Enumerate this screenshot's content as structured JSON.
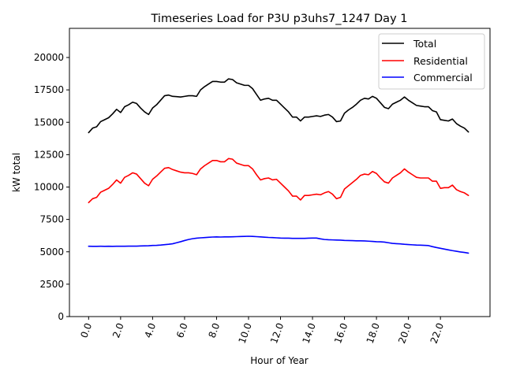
{
  "chart_data": {
    "type": "line",
    "title": "Timeseries Load for P3U p3uhs7_1247  Day 1",
    "xlabel": "Hour of Year",
    "ylabel": "kW total",
    "xlim": [
      -1.2,
      25.1
    ],
    "ylim": [
      0,
      22250
    ],
    "x_ticks": [
      0,
      2,
      4,
      6,
      8,
      10,
      12,
      14,
      16,
      18,
      20,
      22
    ],
    "x_tick_labels": [
      "0.0",
      "2.0",
      "4.0",
      "6.0",
      "8.0",
      "10.0",
      "12.0",
      "14.0",
      "16.0",
      "18.0",
      "20.0",
      "22.0"
    ],
    "y_ticks": [
      0,
      2500,
      5000,
      7500,
      10000,
      12500,
      15000,
      17500,
      20000
    ],
    "y_tick_labels": [
      "0",
      "2500",
      "5000",
      "7500",
      "10000",
      "12500",
      "15000",
      "17500",
      "20000"
    ],
    "legend_position": "top-right",
    "x": [
      0.0,
      0.25,
      0.5,
      0.75,
      1.0,
      1.25,
      1.5,
      1.75,
      2.0,
      2.25,
      2.5,
      2.75,
      3.0,
      3.25,
      3.5,
      3.75,
      4.0,
      4.25,
      4.5,
      4.75,
      5.0,
      5.25,
      5.5,
      5.75,
      6.0,
      6.25,
      6.5,
      6.75,
      7.0,
      7.25,
      7.5,
      7.75,
      8.0,
      8.25,
      8.5,
      8.75,
      9.0,
      9.25,
      9.5,
      9.75,
      10.0,
      10.25,
      10.5,
      10.75,
      11.0,
      11.25,
      11.5,
      11.75,
      12.0,
      12.25,
      12.5,
      12.75,
      13.0,
      13.25,
      13.5,
      13.75,
      14.0,
      14.25,
      14.5,
      14.75,
      15.0,
      15.25,
      15.5,
      15.75,
      16.0,
      16.25,
      16.5,
      16.75,
      17.0,
      17.25,
      17.5,
      17.75,
      18.0,
      18.25,
      18.5,
      18.75,
      19.0,
      19.25,
      19.5,
      19.75,
      20.0,
      20.25,
      20.5,
      20.75,
      21.0,
      21.25,
      21.5,
      21.75,
      22.0,
      22.25,
      22.5,
      22.75,
      23.0,
      23.25,
      23.5,
      23.75
    ],
    "series": [
      {
        "name": "Total",
        "color": "#000000",
        "values": [
          14200,
          14550,
          14650,
          15050,
          15200,
          15350,
          15650,
          16000,
          15750,
          16200,
          16350,
          16550,
          16450,
          16100,
          15800,
          15600,
          16100,
          16350,
          16700,
          17050,
          17100,
          17000,
          16980,
          16950,
          17000,
          17050,
          17050,
          17000,
          17500,
          17750,
          17950,
          18150,
          18150,
          18100,
          18100,
          18350,
          18300,
          18050,
          17950,
          17850,
          17850,
          17600,
          17150,
          16700,
          16800,
          16850,
          16700,
          16700,
          16400,
          16100,
          15800,
          15400,
          15400,
          15100,
          15400,
          15400,
          15450,
          15500,
          15450,
          15550,
          15600,
          15400,
          15050,
          15100,
          15700,
          15950,
          16150,
          16400,
          16700,
          16850,
          16800,
          17000,
          16850,
          16500,
          16150,
          16050,
          16400,
          16550,
          16700,
          16950,
          16700,
          16500,
          16300,
          16250,
          16200,
          16200,
          15900,
          15800,
          15200,
          15150,
          15100,
          15250,
          14900,
          14700,
          14550,
          14250
        ]
      },
      {
        "name": "Residential",
        "color": "#ff0000",
        "values": [
          8800,
          9100,
          9200,
          9600,
          9750,
          9900,
          10200,
          10550,
          10300,
          10750,
          10900,
          11100,
          11000,
          10650,
          10300,
          10100,
          10600,
          10850,
          11150,
          11450,
          11500,
          11350,
          11250,
          11150,
          11100,
          11100,
          11050,
          10950,
          11400,
          11650,
          11850,
          12050,
          12050,
          11950,
          11950,
          12200,
          12150,
          11850,
          11750,
          11650,
          11650,
          11400,
          10950,
          10550,
          10650,
          10700,
          10550,
          10600,
          10300,
          10000,
          9700,
          9300,
          9300,
          9000,
          9350,
          9350,
          9400,
          9450,
          9400,
          9550,
          9650,
          9450,
          9100,
          9200,
          9850,
          10100,
          10350,
          10600,
          10900,
          11000,
          10950,
          11200,
          11050,
          10700,
          10400,
          10300,
          10700,
          10900,
          11100,
          11400,
          11150,
          10950,
          10750,
          10700,
          10700,
          10700,
          10450,
          10450,
          9900,
          9950,
          9950,
          10150,
          9800,
          9650,
          9550,
          9350
        ]
      },
      {
        "name": "Commercial",
        "color": "#0000ff",
        "values": [
          5430,
          5420,
          5420,
          5430,
          5420,
          5430,
          5420,
          5430,
          5430,
          5430,
          5440,
          5440,
          5440,
          5450,
          5460,
          5470,
          5490,
          5500,
          5520,
          5550,
          5580,
          5620,
          5700,
          5780,
          5870,
          5950,
          6010,
          6050,
          6080,
          6100,
          6120,
          6140,
          6150,
          6140,
          6150,
          6150,
          6160,
          6170,
          6180,
          6190,
          6200,
          6190,
          6170,
          6150,
          6130,
          6110,
          6100,
          6080,
          6060,
          6050,
          6050,
          6040,
          6040,
          6040,
          6040,
          6050,
          6060,
          6060,
          6000,
          5950,
          5930,
          5920,
          5910,
          5900,
          5880,
          5870,
          5860,
          5850,
          5850,
          5840,
          5820,
          5800,
          5780,
          5770,
          5750,
          5700,
          5650,
          5630,
          5610,
          5580,
          5560,
          5540,
          5520,
          5510,
          5500,
          5480,
          5400,
          5330,
          5270,
          5210,
          5150,
          5090,
          5040,
          4990,
          4950,
          4900
        ]
      }
    ]
  }
}
